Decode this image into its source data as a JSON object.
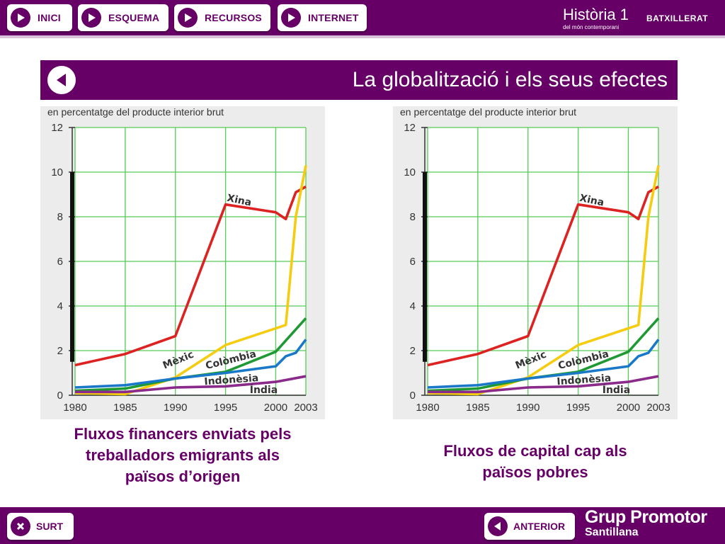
{
  "nav": {
    "buttons": [
      {
        "label": "INICI"
      },
      {
        "label": "ESQUEMA"
      },
      {
        "label": "RECURSOS"
      },
      {
        "label": "INTERNET"
      }
    ]
  },
  "brand": {
    "title": "Història 1",
    "subtitle": "del món contemporani",
    "level": "BATXILLERAT"
  },
  "header": {
    "title": "La globalització i els seus efectes"
  },
  "charts_common": {
    "ylabel": "en percentatge del producte interior brut",
    "series_labels": [
      "Xina",
      "Mèxic",
      "Colòmbia",
      "Indonèsia",
      "Índia"
    ]
  },
  "chart_data": [
    {
      "type": "line",
      "title": "",
      "ylabel": "en percentatge del producte interior brut",
      "ylim": [
        0,
        12
      ],
      "xlim": [
        1980,
        2003
      ],
      "x_ticks": [
        1980,
        1985,
        1990,
        1995,
        2000,
        2003
      ],
      "y_ticks": [
        0,
        2,
        4,
        6,
        8,
        10,
        12
      ],
      "grid": true,
      "series": [
        {
          "name": "Xina",
          "color": "#dd2222",
          "points": [
            [
              1980,
              1.35
            ],
            [
              1985,
              1.85
            ],
            [
              1990,
              2.65
            ],
            [
              1995,
              8.55
            ],
            [
              2000,
              8.2
            ],
            [
              2001,
              7.9
            ],
            [
              2002,
              9.1
            ],
            [
              2003,
              9.35
            ]
          ]
        },
        {
          "name": "Mèxic",
          "color": "#f5cc10",
          "points": [
            [
              1980,
              0.1
            ],
            [
              1985,
              0.05
            ],
            [
              1990,
              0.8
            ],
            [
              1995,
              2.25
            ],
            [
              2001,
              3.15
            ],
            [
              2002,
              8.0
            ],
            [
              2003,
              10.3
            ]
          ]
        },
        {
          "name": "Colòmbia",
          "color": "#1f9933",
          "points": [
            [
              1980,
              0.2
            ],
            [
              1985,
              0.3
            ],
            [
              1990,
              0.75
            ],
            [
              1995,
              1.05
            ],
            [
              2000,
              1.95
            ],
            [
              2003,
              3.45
            ]
          ]
        },
        {
          "name": "Indonèsia",
          "color": "#1a78c8",
          "points": [
            [
              1980,
              0.35
            ],
            [
              1985,
              0.45
            ],
            [
              1990,
              0.75
            ],
            [
              1995,
              1.0
            ],
            [
              2000,
              1.3
            ],
            [
              2001,
              1.75
            ],
            [
              2002,
              1.9
            ],
            [
              2003,
              2.5
            ]
          ]
        },
        {
          "name": "Índia",
          "color": "#8a2a8a",
          "points": [
            [
              1980,
              0.15
            ],
            [
              1985,
              0.15
            ],
            [
              1990,
              0.35
            ],
            [
              1995,
              0.4
            ],
            [
              2000,
              0.6
            ],
            [
              2003,
              0.85
            ]
          ]
        }
      ]
    },
    {
      "type": "line",
      "title": "",
      "ylabel": "en percentatge del producte interior brut",
      "ylim": [
        0,
        12
      ],
      "xlim": [
        1980,
        2003
      ],
      "x_ticks": [
        1980,
        1985,
        1990,
        1995,
        2000,
        2003
      ],
      "y_ticks": [
        0,
        2,
        4,
        6,
        8,
        10,
        12
      ],
      "grid": true,
      "series": [
        {
          "name": "Xina",
          "color": "#dd2222",
          "points": [
            [
              1980,
              1.35
            ],
            [
              1985,
              1.85
            ],
            [
              1990,
              2.65
            ],
            [
              1995,
              8.55
            ],
            [
              2000,
              8.2
            ],
            [
              2001,
              7.9
            ],
            [
              2002,
              9.1
            ],
            [
              2003,
              9.35
            ]
          ]
        },
        {
          "name": "Mèxic",
          "color": "#f5cc10",
          "points": [
            [
              1980,
              0.1
            ],
            [
              1985,
              0.05
            ],
            [
              1990,
              0.8
            ],
            [
              1995,
              2.25
            ],
            [
              2001,
              3.15
            ],
            [
              2002,
              8.0
            ],
            [
              2003,
              10.3
            ]
          ]
        },
        {
          "name": "Colòmbia",
          "color": "#1f9933",
          "points": [
            [
              1980,
              0.2
            ],
            [
              1985,
              0.3
            ],
            [
              1990,
              0.75
            ],
            [
              1995,
              1.05
            ],
            [
              2000,
              1.95
            ],
            [
              2003,
              3.45
            ]
          ]
        },
        {
          "name": "Indonèsia",
          "color": "#1a78c8",
          "points": [
            [
              1980,
              0.35
            ],
            [
              1985,
              0.45
            ],
            [
              1990,
              0.75
            ],
            [
              1995,
              1.0
            ],
            [
              2000,
              1.3
            ],
            [
              2001,
              1.75
            ],
            [
              2002,
              1.9
            ],
            [
              2003,
              2.5
            ]
          ]
        },
        {
          "name": "Índia",
          "color": "#8a2a8a",
          "points": [
            [
              1980,
              0.15
            ],
            [
              1985,
              0.15
            ],
            [
              1990,
              0.35
            ],
            [
              1995,
              0.4
            ],
            [
              2000,
              0.6
            ],
            [
              2003,
              0.85
            ]
          ]
        }
      ]
    }
  ],
  "captions": {
    "left": [
      "Fluxos financers enviats pels",
      "treballadors emigrants als",
      "països d’origen"
    ],
    "right": [
      "Fluxos de capital cap als",
      "països pobres"
    ]
  },
  "footer": {
    "exit_label": "SURT",
    "prev_label": "ANTERIOR",
    "publisher_line1": "Grup Promotor",
    "publisher_line2": "Santillana"
  },
  "colors": {
    "brand": "#660066",
    "grid": "#55cc55"
  }
}
